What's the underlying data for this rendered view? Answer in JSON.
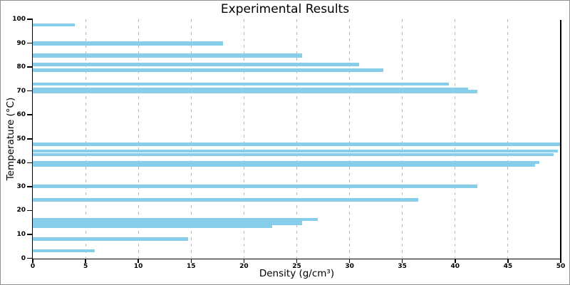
{
  "chart_data": {
    "type": "bar",
    "orientation": "horizontal",
    "title": "Experimental Results",
    "xlabel": "Density (g/cm³)",
    "ylabel": "Temperature (°C)",
    "xlim": [
      0,
      50
    ],
    "ylim": [
      0,
      100
    ],
    "x_ticks": [
      0,
      5,
      10,
      15,
      20,
      25,
      30,
      35,
      40,
      45,
      50
    ],
    "y_ticks": [
      0,
      10,
      20,
      30,
      40,
      50,
      60,
      70,
      80,
      90,
      100
    ],
    "grid": "vertical-dashed",
    "legend": "none",
    "bar_color": "#87CEEB",
    "bars": [
      {
        "temperature": 97.5,
        "density": 4.0,
        "bar_height": 1.2
      },
      {
        "temperature": 89.9,
        "density": 18.0,
        "bar_height": 1.6
      },
      {
        "temperature": 84.8,
        "density": 25.5,
        "bar_height": 1.8
      },
      {
        "temperature": 81.1,
        "density": 30.9,
        "bar_height": 1.6
      },
      {
        "temperature": 78.7,
        "density": 33.2,
        "bar_height": 1.6
      },
      {
        "temperature": 72.9,
        "density": 39.4,
        "bar_height": 1.4
      },
      {
        "temperature": 70.7,
        "density": 41.2,
        "bar_height": 1.25
      },
      {
        "temperature": 69.8,
        "density": 42.1,
        "bar_height": 1.4
      },
      {
        "temperature": 47.6,
        "density": 50.0,
        "bar_height": 1.5
      },
      {
        "temperature": 44.9,
        "density": 49.7,
        "bar_height": 1.4
      },
      {
        "temperature": 43.4,
        "density": 49.3,
        "bar_height": 1.2
      },
      {
        "temperature": 40.1,
        "density": 48.0,
        "bar_height": 1.2
      },
      {
        "temperature": 38.9,
        "density": 47.6,
        "bar_height": 1.3
      },
      {
        "temperature": 30.0,
        "density": 42.1,
        "bar_height": 1.5
      },
      {
        "temperature": 24.4,
        "density": 36.5,
        "bar_height": 1.4
      },
      {
        "temperature": 16.2,
        "density": 27.0,
        "bar_height": 1.2
      },
      {
        "temperature": 14.8,
        "density": 25.5,
        "bar_height": 1.8
      },
      {
        "temperature": 13.3,
        "density": 22.7,
        "bar_height": 1.2
      },
      {
        "temperature": 8.1,
        "density": 14.7,
        "bar_height": 1.5
      },
      {
        "temperature": 3.1,
        "density": 5.9,
        "bar_height": 1.3
      }
    ]
  },
  "colors": {
    "bar": "#87CEEB",
    "spine": "#000000",
    "gridline": "#bbbbbb",
    "figure_border": "#909090",
    "text": "#000000",
    "background": "#ffffff"
  }
}
